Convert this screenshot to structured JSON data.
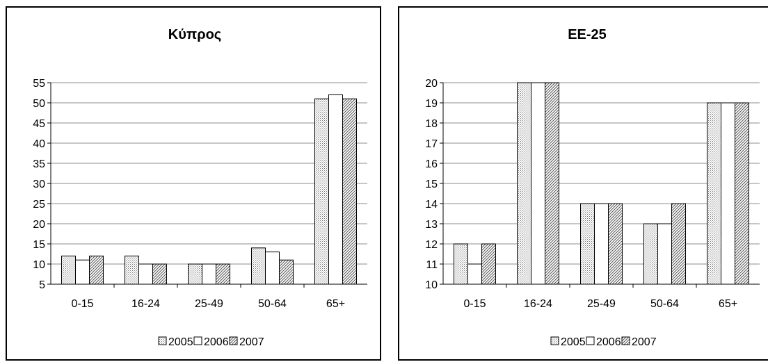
{
  "chart_data": [
    {
      "type": "bar",
      "title": "Κύπρος",
      "categories": [
        "0-15",
        "16-24",
        "25-49",
        "50-64",
        "65+"
      ],
      "series": [
        {
          "name": "2005",
          "values": [
            12,
            12,
            10,
            14,
            51
          ]
        },
        {
          "name": "2006",
          "values": [
            11,
            10,
            10,
            13,
            52
          ]
        },
        {
          "name": "2007",
          "values": [
            12,
            10,
            10,
            11,
            51
          ]
        }
      ],
      "ylim": [
        5,
        55
      ],
      "yticks": [
        5,
        10,
        15,
        20,
        25,
        30,
        35,
        40,
        45,
        50,
        55
      ],
      "grid": true,
      "legend": "bottom"
    },
    {
      "type": "bar",
      "title": "ΕΕ-25",
      "categories": [
        "0-15",
        "16-24",
        "25-49",
        "50-64",
        "65+"
      ],
      "series": [
        {
          "name": "2005",
          "values": [
            12,
            20,
            14,
            13,
            19
          ]
        },
        {
          "name": "2006",
          "values": [
            11,
            20,
            14,
            13,
            19
          ]
        },
        {
          "name": "2007",
          "values": [
            12,
            20,
            14,
            14,
            19
          ]
        }
      ],
      "ylim": [
        10,
        20
      ],
      "yticks": [
        10,
        11,
        12,
        13,
        14,
        15,
        16,
        17,
        18,
        19,
        20
      ],
      "grid": true,
      "legend": "bottom"
    }
  ],
  "patterns": {
    "2005": "dotted",
    "2006": "blank",
    "2007": "diagonal-hatch"
  }
}
